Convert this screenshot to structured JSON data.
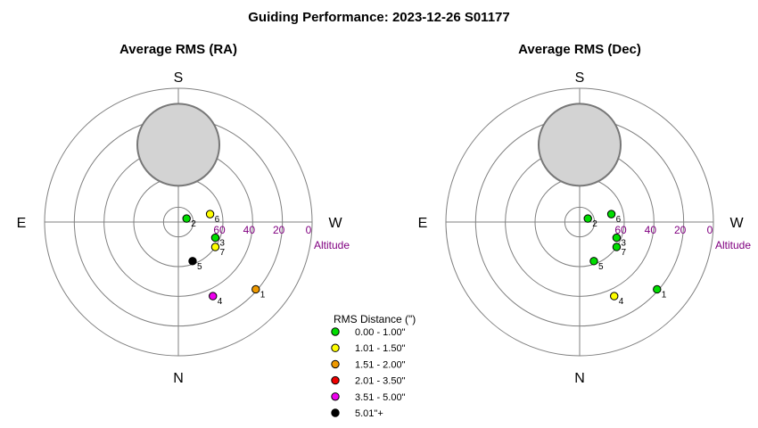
{
  "title": "Guiding Performance: 2023-12-26 S01177",
  "directions": {
    "south": "S",
    "north": "N",
    "east": "E",
    "west": "W"
  },
  "altitude_label": "Altitude",
  "legend": {
    "title": "RMS Distance (\")",
    "items": [
      {
        "label": "0.00 - 1.00\"",
        "color": "#00dd00"
      },
      {
        "label": "1.01 - 1.50\"",
        "color": "#ffff00"
      },
      {
        "label": "1.51 - 2.00\"",
        "color": "#ee9900"
      },
      {
        "label": "2.01 - 3.50\"",
        "color": "#ee0000"
      },
      {
        "label": "3.51 - 5.00\"",
        "color": "#ee00ee"
      },
      {
        "label": "5.01\"+",
        "color": "#000000"
      }
    ]
  },
  "chart_data": [
    {
      "type": "scatter",
      "projection": "polar-sky",
      "title": "Average RMS (RA)",
      "altitude_ticks": [
        "60",
        "40",
        "20",
        "0"
      ],
      "altitude_rings": [
        0,
        20,
        40,
        60,
        80
      ],
      "excluded_zone": {
        "altitude": 38,
        "azimuth": 0,
        "angular_radius": 20
      },
      "points": [
        {
          "label": "1",
          "altitude": 21,
          "azimuth": 229,
          "rms_color": "#ee9900"
        },
        {
          "label": "2",
          "altitude": 84,
          "azimuth": 293,
          "rms_color": "#00dd00"
        },
        {
          "label": "3",
          "altitude": 63,
          "azimuth": 247,
          "rms_color": "#00dd00"
        },
        {
          "label": "4",
          "altitude": 35,
          "azimuth": 205,
          "rms_color": "#ee00ee"
        },
        {
          "label": "5",
          "altitude": 62,
          "azimuth": 200,
          "rms_color": "#000000"
        },
        {
          "label": "6",
          "altitude": 68,
          "azimuth": 284,
          "rms_color": "#ffff00"
        },
        {
          "label": "7",
          "altitude": 60,
          "azimuth": 236,
          "rms_color": "#ffff00"
        }
      ]
    },
    {
      "type": "scatter",
      "projection": "polar-sky",
      "title": "Average RMS (Dec)",
      "altitude_ticks": [
        "60",
        "40",
        "20",
        "0"
      ],
      "altitude_rings": [
        0,
        20,
        40,
        60,
        80
      ],
      "excluded_zone": {
        "altitude": 38,
        "azimuth": 0,
        "angular_radius": 20
      },
      "points": [
        {
          "label": "1",
          "altitude": 21,
          "azimuth": 229,
          "rms_color": "#00dd00"
        },
        {
          "label": "2",
          "altitude": 84,
          "azimuth": 293,
          "rms_color": "#00dd00"
        },
        {
          "label": "3",
          "altitude": 63,
          "azimuth": 247,
          "rms_color": "#00dd00"
        },
        {
          "label": "4",
          "altitude": 35,
          "azimuth": 205,
          "rms_color": "#ffff00"
        },
        {
          "label": "5",
          "altitude": 62,
          "azimuth": 200,
          "rms_color": "#00dd00"
        },
        {
          "label": "6",
          "altitude": 68,
          "azimuth": 284,
          "rms_color": "#00dd00"
        },
        {
          "label": "7",
          "altitude": 60,
          "azimuth": 236,
          "rms_color": "#00dd00"
        }
      ]
    }
  ]
}
